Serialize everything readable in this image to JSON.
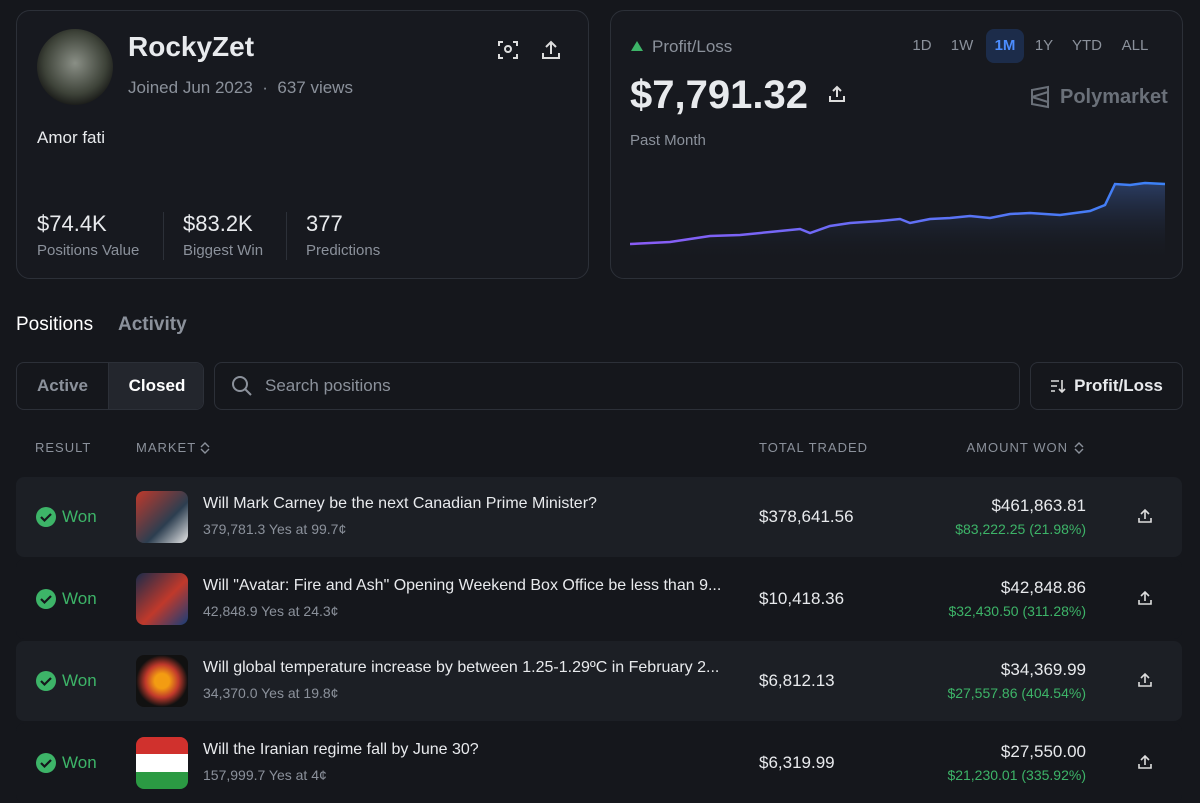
{
  "profile": {
    "name": "RockyZet",
    "joined": "Joined Jun 2023",
    "separator": "·",
    "views": "637 views",
    "bio": "Amor fati",
    "stats": [
      {
        "value": "$74.4K",
        "label": "Positions Value"
      },
      {
        "value": "$83.2K",
        "label": "Biggest Win"
      },
      {
        "value": "377",
        "label": "Predictions"
      }
    ]
  },
  "pnl": {
    "label": "Profit/Loss",
    "ranges": [
      "1D",
      "1W",
      "1M",
      "1Y",
      "YTD",
      "ALL"
    ],
    "active_range_index": 2,
    "value": "$7,791.32",
    "period": "Past Month",
    "brand": "Polymarket"
  },
  "tabs": {
    "items": [
      "Positions",
      "Activity"
    ],
    "active_index": 0
  },
  "filters": {
    "items": [
      "Active",
      "Closed"
    ],
    "active_index": 1
  },
  "search": {
    "placeholder": "Search positions"
  },
  "sort": {
    "label": "Profit/Loss"
  },
  "table": {
    "headers": [
      "RESULT",
      "MARKET",
      "TOTAL TRADED",
      "AMOUNT WON"
    ],
    "rows": [
      {
        "result": "Won",
        "title": "Will Mark Carney be the next Canadian Prime Minister?",
        "detail": "379,781.3 Yes at 99.7¢",
        "total": "$378,641.56",
        "amount": "$461,863.81",
        "profit": "$83,222.25 (21.98%)"
      },
      {
        "result": "Won",
        "title": "Will \"Avatar: Fire and Ash\" Opening Weekend Box Office be less than 9...",
        "detail": "42,848.9 Yes at 24.3¢",
        "total": "$10,418.36",
        "amount": "$42,848.86",
        "profit": "$32,430.50 (311.28%)"
      },
      {
        "result": "Won",
        "title": "Will global temperature increase by between 1.25-1.29ºC in February 2...",
        "detail": "34,370.0 Yes at 19.8¢",
        "total": "$6,812.13",
        "amount": "$34,369.99",
        "profit": "$27,557.86 (404.54%)"
      },
      {
        "result": "Won",
        "title": "Will the Iranian regime fall by June 30?",
        "detail": "157,999.7 Yes at 4¢",
        "total": "$6,319.99",
        "amount": "$27,550.00",
        "profit": "$21,230.01 (335.92%)"
      }
    ]
  }
}
